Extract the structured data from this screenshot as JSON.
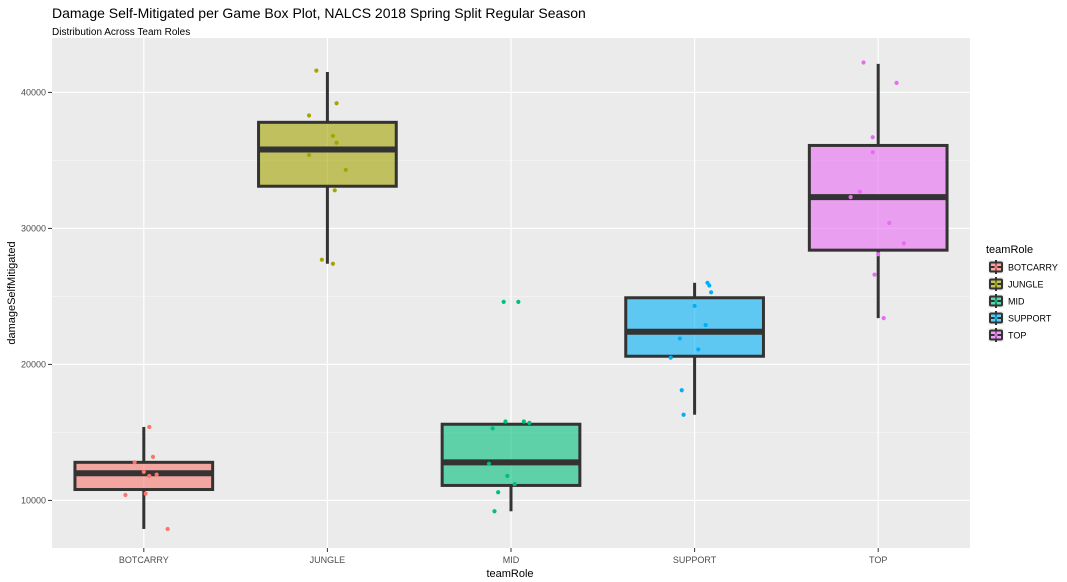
{
  "chart_data": {
    "type": "box",
    "title": "Damage Self-Mitigated per Game Box Plot, NALCS 2018 Spring Split Regular Season",
    "subtitle": "Distribution Across Team Roles",
    "xlabel": "teamRole",
    "ylabel": "damageSelfMitigated",
    "ylim": [
      6500,
      44000
    ],
    "yticks": [
      10000,
      20000,
      30000,
      40000
    ],
    "grid": true,
    "legend": {
      "title": "teamRole",
      "placement": "right",
      "entries": [
        "BOTCARRY",
        "JUNGLE",
        "MID",
        "SUPPORT",
        "TOP"
      ]
    },
    "categories": [
      "BOTCARRY",
      "JUNGLE",
      "MID",
      "SUPPORT",
      "TOP"
    ],
    "boxes": [
      {
        "category": "BOTCARRY",
        "color": "#F8766D",
        "whisker_low": 7900,
        "q1": 10800,
        "median": 12000,
        "q3": 12800,
        "whisker_high": 15400,
        "points": [
          15400,
          13200,
          12800,
          12100,
          11800,
          11900,
          10500,
          10400,
          7900
        ]
      },
      {
        "category": "JUNGLE",
        "color": "#A3A500",
        "whisker_low": 27400,
        "q1": 33100,
        "median": 35800,
        "q3": 37800,
        "whisker_high": 41500,
        "points": [
          41600,
          39200,
          38300,
          36800,
          36300,
          35400,
          34300,
          32800,
          27700,
          27400
        ]
      },
      {
        "category": "MID",
        "color": "#00BF7D",
        "whisker_low": 9200,
        "q1": 11100,
        "median": 12800,
        "q3": 15600,
        "whisker_high": 15600,
        "points": [
          24600,
          24600,
          15800,
          15800,
          15700,
          15300,
          12700,
          11800,
          11200,
          10600,
          9200
        ]
      },
      {
        "category": "SUPPORT",
        "color": "#00B0F6",
        "whisker_low": 16300,
        "q1": 20600,
        "median": 22400,
        "q3": 24900,
        "whisker_high": 26000,
        "points": [
          26000,
          25800,
          25300,
          24300,
          22900,
          21900,
          21100,
          20500,
          18100,
          16300
        ]
      },
      {
        "category": "TOP",
        "color": "#E76BF3",
        "whisker_low": 23400,
        "q1": 28400,
        "median": 32300,
        "q3": 36100,
        "whisker_high": 42100,
        "points": [
          42200,
          40700,
          36700,
          35600,
          32700,
          32300,
          30400,
          28900,
          28100,
          26600,
          23400
        ]
      }
    ],
    "point_offsets": [
      [
        0.03,
        0.05,
        -0.05,
        0.0,
        0.03,
        0.07,
        0.01,
        -0.1,
        0.13
      ],
      [
        -0.06,
        0.05,
        -0.1,
        0.03,
        0.05,
        -0.1,
        0.1,
        0.04,
        -0.03,
        0.03
      ],
      [
        -0.04,
        0.04,
        -0.03,
        0.07,
        0.1,
        -0.1,
        -0.12,
        -0.02,
        0.02,
        -0.07,
        -0.09
      ],
      [
        0.07,
        0.08,
        0.09,
        0.0,
        0.06,
        -0.08,
        0.02,
        -0.13,
        -0.07,
        -0.06
      ],
      [
        -0.08,
        0.1,
        -0.03,
        -0.03,
        -0.1,
        -0.15,
        0.06,
        0.14,
        0.0,
        -0.02,
        0.03
      ]
    ]
  }
}
